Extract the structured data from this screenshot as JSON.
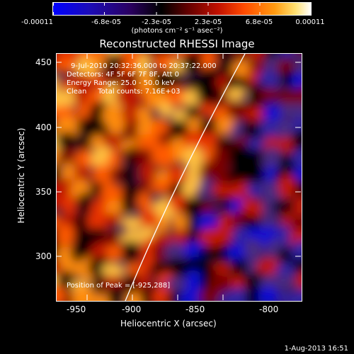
{
  "colorbar": {
    "tick_labels": [
      "-0.00011",
      "-6.8e-05",
      "-2.3e-05",
      "2.3e-05",
      "6.8e-05",
      "0.00011"
    ],
    "units": "(photons cm⁻² s⁻¹ asec⁻²)",
    "colors": [
      "#0000ff",
      "#1a0aa8",
      "#220044",
      "#000000",
      "#600000",
      "#c01000",
      "#ff4000",
      "#ff9000",
      "#ffd860",
      "#ffffff"
    ]
  },
  "title": "Reconstructed RHESSI Image",
  "info": {
    "time_range": "9-Jul-2010 20:32:36.000 to 20:37:22.000",
    "detectors": "Detectors: 4F 5F 6F 7F 8F, Att 0",
    "energy": "Energy Range: 25.0 - 50.0 keV",
    "clean": "Clean     Total counts: 7.16E+03",
    "peak": "Position of Peak = [-925,288]"
  },
  "axes": {
    "xlabel": "Heliocentric X (arcsec)",
    "ylabel": "Heliocentric Y (arcsec)",
    "x_ticks": [
      "-950",
      "-900",
      "-850",
      "-800"
    ],
    "y_ticks": [
      "450",
      "400",
      "350",
      "300"
    ]
  },
  "chart_data": {
    "type": "heatmap",
    "title": "Reconstructed RHESSI Image",
    "xlabel": "Heliocentric X (arcsec)",
    "ylabel": "Heliocentric Y (arcsec)",
    "xlim": [
      -965,
      -776
    ],
    "ylim": [
      265,
      457
    ],
    "x_ticks": [
      -950,
      -900,
      -850,
      -800
    ],
    "y_ticks": [
      450,
      400,
      350,
      300
    ],
    "peak": [
      -925,
      288
    ],
    "color_range": [
      -0.00011,
      0.00011
    ]
  },
  "timestamp": "1-Aug-2013 16:51"
}
